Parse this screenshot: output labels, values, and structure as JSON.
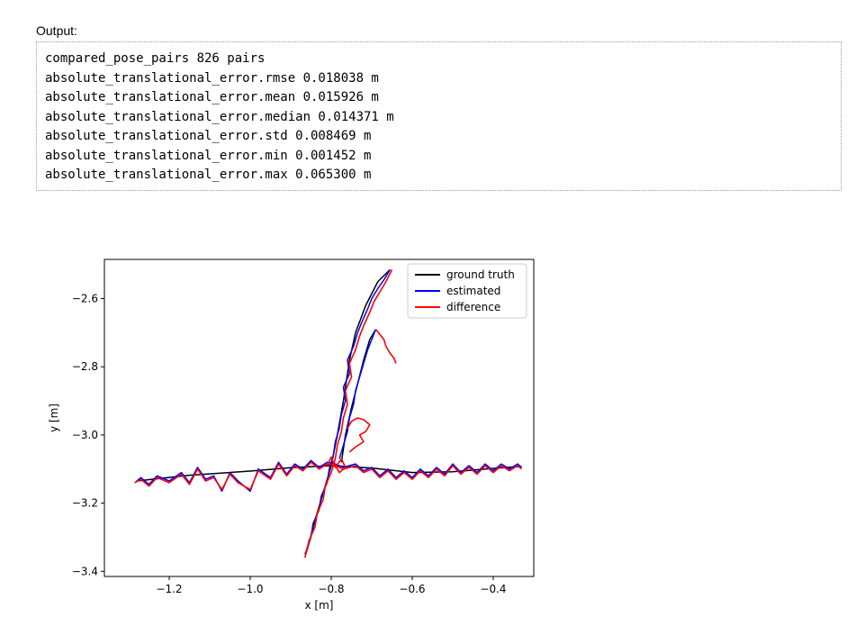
{
  "output": {
    "label": "Output:",
    "lines": [
      "compared_pose_pairs 826 pairs",
      "absolute_translational_error.rmse 0.018038 m",
      "absolute_translational_error.mean 0.015926 m",
      "absolute_translational_error.median 0.014371 m",
      "absolute_translational_error.std 0.008469 m",
      "absolute_translational_error.min 0.001452 m",
      "absolute_translational_error.max 0.065300 m"
    ]
  },
  "chart_data": {
    "type": "line",
    "xlabel": "x [m]",
    "ylabel": "y [m]",
    "xlim": [
      -1.36,
      -0.3
    ],
    "ylim": [
      -3.415,
      -2.485
    ],
    "xticks": [
      -1.2,
      -1.0,
      -0.8,
      -0.6,
      -0.4
    ],
    "xtick_labels": [
      "−1.2",
      "−1.0",
      "−0.8",
      "−0.6",
      "−0.4"
    ],
    "yticks": [
      -2.6,
      -2.8,
      -3.0,
      -3.2,
      -3.4
    ],
    "ytick_labels": [
      "−2.6",
      "−2.8",
      "−3.0",
      "−3.2",
      "−3.4"
    ],
    "grid": false,
    "legend_position": "top-right",
    "colors": {
      "ground_truth": "#000000",
      "estimated": "#0000ff",
      "difference": "#ff0000"
    },
    "series": [
      {
        "name": "ground truth",
        "segments": [
          [
            [
              -1.28,
              -3.135
            ],
            [
              -1.15,
              -3.118
            ],
            [
              -1.0,
              -3.106
            ],
            [
              -0.9,
              -3.096
            ],
            [
              -0.8,
              -3.09
            ],
            [
              -0.7,
              -3.097
            ],
            [
              -0.6,
              -3.11
            ],
            [
              -0.5,
              -3.108
            ],
            [
              -0.4,
              -3.098
            ],
            [
              -0.33,
              -3.092
            ]
          ],
          [
            [
              -0.86,
              -3.34
            ],
            [
              -0.84,
              -3.25
            ],
            [
              -0.82,
              -3.17
            ],
            [
              -0.8,
              -3.09
            ],
            [
              -0.785,
              -3.0
            ],
            [
              -0.77,
              -2.9
            ],
            [
              -0.755,
              -2.78
            ],
            [
              -0.74,
              -2.7
            ],
            [
              -0.715,
              -2.62
            ],
            [
              -0.685,
              -2.55
            ],
            [
              -0.655,
              -2.515
            ]
          ],
          [
            [
              -0.775,
              -3.08
            ],
            [
              -0.765,
              -3.0
            ],
            [
              -0.75,
              -2.92
            ],
            [
              -0.735,
              -2.85
            ],
            [
              -0.72,
              -2.78
            ],
            [
              -0.705,
              -2.72
            ],
            [
              -0.69,
              -2.69
            ]
          ]
        ]
      },
      {
        "name": "estimated",
        "segments": [
          [
            [
              -1.285,
              -3.14
            ],
            [
              -1.27,
              -3.125
            ],
            [
              -1.25,
              -3.145
            ],
            [
              -1.23,
              -3.12
            ],
            [
              -1.2,
              -3.135
            ],
            [
              -1.17,
              -3.11
            ],
            [
              -1.15,
              -3.14
            ],
            [
              -1.13,
              -3.095
            ],
            [
              -1.11,
              -3.13
            ],
            [
              -1.09,
              -3.12
            ],
            [
              -1.07,
              -3.165
            ],
            [
              -1.05,
              -3.11
            ],
            [
              -1.03,
              -3.135
            ],
            [
              -1.0,
              -3.165
            ],
            [
              -0.98,
              -3.1
            ],
            [
              -0.95,
              -3.125
            ],
            [
              -0.93,
              -3.08
            ],
            [
              -0.91,
              -3.115
            ],
            [
              -0.89,
              -3.085
            ],
            [
              -0.87,
              -3.1
            ],
            [
              -0.85,
              -3.075
            ],
            [
              -0.83,
              -3.095
            ],
            [
              -0.81,
              -3.08
            ],
            [
              -0.79,
              -3.085
            ],
            [
              -0.77,
              -3.095
            ],
            [
              -0.74,
              -3.085
            ],
            [
              -0.72,
              -3.105
            ],
            [
              -0.7,
              -3.095
            ],
            [
              -0.68,
              -3.12
            ],
            [
              -0.66,
              -3.1
            ],
            [
              -0.64,
              -3.125
            ],
            [
              -0.62,
              -3.105
            ],
            [
              -0.6,
              -3.125
            ],
            [
              -0.58,
              -3.1
            ],
            [
              -0.56,
              -3.12
            ],
            [
              -0.54,
              -3.095
            ],
            [
              -0.52,
              -3.115
            ],
            [
              -0.5,
              -3.085
            ],
            [
              -0.48,
              -3.11
            ],
            [
              -0.46,
              -3.09
            ],
            [
              -0.44,
              -3.11
            ],
            [
              -0.42,
              -3.085
            ],
            [
              -0.4,
              -3.105
            ],
            [
              -0.38,
              -3.085
            ],
            [
              -0.36,
              -3.1
            ],
            [
              -0.34,
              -3.085
            ],
            [
              -0.33,
              -3.095
            ]
          ],
          [
            [
              -0.865,
              -3.35
            ],
            [
              -0.85,
              -3.3
            ],
            [
              -0.845,
              -3.26
            ],
            [
              -0.83,
              -3.22
            ],
            [
              -0.825,
              -3.18
            ],
            [
              -0.81,
              -3.14
            ],
            [
              -0.805,
              -3.1
            ],
            [
              -0.795,
              -3.06
            ],
            [
              -0.79,
              -3.02
            ],
            [
              -0.78,
              -2.98
            ],
            [
              -0.775,
              -2.94
            ],
            [
              -0.765,
              -2.9
            ],
            [
              -0.77,
              -2.86
            ],
            [
              -0.755,
              -2.82
            ],
            [
              -0.76,
              -2.78
            ],
            [
              -0.745,
              -2.74
            ],
            [
              -0.735,
              -2.7
            ],
            [
              -0.725,
              -2.67
            ],
            [
              -0.71,
              -2.63
            ],
            [
              -0.7,
              -2.6
            ],
            [
              -0.685,
              -2.57
            ],
            [
              -0.67,
              -2.545
            ],
            [
              -0.655,
              -2.515
            ]
          ],
          [
            [
              -0.78,
              -3.07
            ],
            [
              -0.77,
              -3.03
            ],
            [
              -0.76,
              -2.99
            ],
            [
              -0.755,
              -2.95
            ],
            [
              -0.745,
              -2.91
            ],
            [
              -0.74,
              -2.87
            ],
            [
              -0.73,
              -2.83
            ],
            [
              -0.72,
              -2.79
            ],
            [
              -0.71,
              -2.75
            ],
            [
              -0.7,
              -2.72
            ],
            [
              -0.69,
              -2.69
            ]
          ]
        ]
      },
      {
        "name": "difference",
        "segments": [
          [
            [
              -1.285,
              -3.14
            ],
            [
              -1.27,
              -3.13
            ],
            [
              -1.25,
              -3.15
            ],
            [
              -1.23,
              -3.125
            ],
            [
              -1.2,
              -3.14
            ],
            [
              -1.17,
              -3.115
            ],
            [
              -1.15,
              -3.145
            ],
            [
              -1.13,
              -3.1
            ],
            [
              -1.11,
              -3.135
            ],
            [
              -1.09,
              -3.125
            ],
            [
              -1.07,
              -3.16
            ],
            [
              -1.05,
              -3.115
            ],
            [
              -1.03,
              -3.14
            ],
            [
              -1.0,
              -3.16
            ],
            [
              -0.98,
              -3.105
            ],
            [
              -0.95,
              -3.13
            ],
            [
              -0.93,
              -3.085
            ],
            [
              -0.91,
              -3.12
            ],
            [
              -0.89,
              -3.09
            ],
            [
              -0.87,
              -3.105
            ],
            [
              -0.85,
              -3.08
            ],
            [
              -0.83,
              -3.1
            ],
            [
              -0.81,
              -3.085
            ],
            [
              -0.79,
              -3.09
            ],
            [
              -0.77,
              -3.1
            ],
            [
              -0.74,
              -3.09
            ],
            [
              -0.72,
              -3.11
            ],
            [
              -0.7,
              -3.1
            ],
            [
              -0.68,
              -3.125
            ],
            [
              -0.66,
              -3.105
            ],
            [
              -0.64,
              -3.13
            ],
            [
              -0.62,
              -3.11
            ],
            [
              -0.6,
              -3.13
            ],
            [
              -0.58,
              -3.105
            ],
            [
              -0.56,
              -3.125
            ],
            [
              -0.54,
              -3.1
            ],
            [
              -0.52,
              -3.12
            ],
            [
              -0.5,
              -3.09
            ],
            [
              -0.48,
              -3.115
            ],
            [
              -0.46,
              -3.095
            ],
            [
              -0.44,
              -3.115
            ],
            [
              -0.42,
              -3.09
            ],
            [
              -0.4,
              -3.11
            ],
            [
              -0.38,
              -3.09
            ],
            [
              -0.36,
              -3.105
            ],
            [
              -0.34,
              -3.09
            ],
            [
              -0.33,
              -3.1
            ]
          ],
          [
            [
              -0.865,
              -3.36
            ],
            [
              -0.855,
              -3.31
            ],
            [
              -0.84,
              -3.27
            ],
            [
              -0.835,
              -3.23
            ],
            [
              -0.82,
              -3.19
            ],
            [
              -0.815,
              -3.15
            ],
            [
              -0.8,
              -3.11
            ],
            [
              -0.79,
              -3.07
            ],
            [
              -0.785,
              -3.03
            ],
            [
              -0.775,
              -2.99
            ],
            [
              -0.77,
              -2.95
            ],
            [
              -0.76,
              -2.91
            ],
            [
              -0.765,
              -2.87
            ],
            [
              -0.75,
              -2.83
            ],
            [
              -0.755,
              -2.79
            ],
            [
              -0.74,
              -2.75
            ],
            [
              -0.73,
              -2.71
            ],
            [
              -0.72,
              -2.68
            ],
            [
              -0.705,
              -2.64
            ],
            [
              -0.695,
              -2.61
            ],
            [
              -0.68,
              -2.58
            ],
            [
              -0.665,
              -2.55
            ],
            [
              -0.65,
              -2.515
            ]
          ],
          [
            [
              -0.69,
              -2.69
            ],
            [
              -0.68,
              -2.705
            ],
            [
              -0.67,
              -2.72
            ],
            [
              -0.665,
              -2.74
            ],
            [
              -0.655,
              -2.76
            ],
            [
              -0.645,
              -2.775
            ],
            [
              -0.64,
              -2.79
            ]
          ],
          [
            [
              -0.76,
              -2.98
            ],
            [
              -0.75,
              -2.96
            ],
            [
              -0.735,
              -2.95
            ],
            [
              -0.72,
              -2.955
            ],
            [
              -0.705,
              -2.97
            ],
            [
              -0.715,
              -2.99
            ],
            [
              -0.73,
              -3.0
            ],
            [
              -0.72,
              -3.02
            ],
            [
              -0.74,
              -3.035
            ],
            [
              -0.755,
              -3.05
            ]
          ],
          [
            [
              -0.81,
              -3.09
            ],
            [
              -0.8,
              -3.065
            ],
            [
              -0.79,
              -3.095
            ],
            [
              -0.775,
              -3.07
            ],
            [
              -0.765,
              -3.095
            ],
            [
              -0.78,
              -3.11
            ],
            [
              -0.795,
              -3.08
            ]
          ]
        ]
      }
    ]
  }
}
